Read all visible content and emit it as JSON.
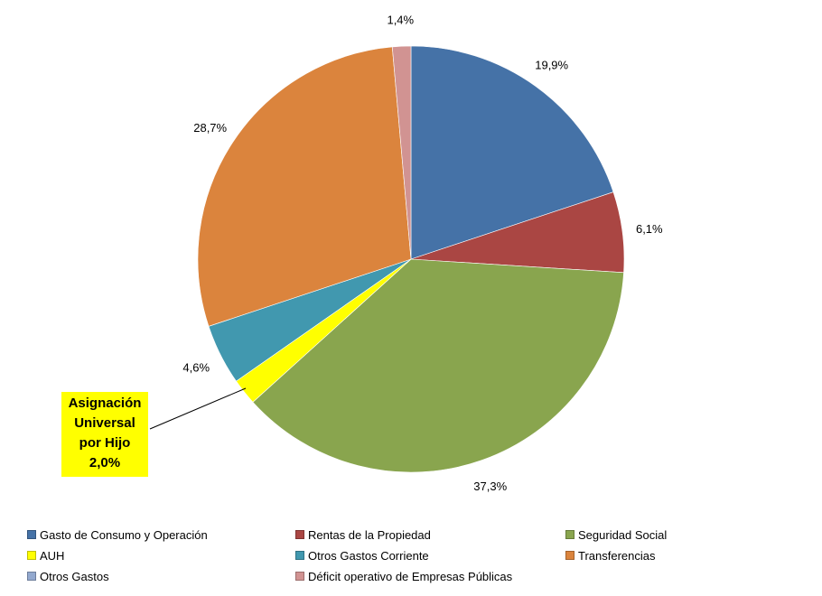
{
  "chart_data": {
    "type": "pie",
    "title": "",
    "start_angle": "12 o'clock",
    "direction": "clockwise",
    "slices": [
      {
        "name": "Gasto de Consumo y Operación",
        "value": 19.9,
        "label": "19,9%",
        "color": "#4572a7"
      },
      {
        "name": "Rentas de la Propiedad",
        "value": 6.1,
        "label": "6,1%",
        "color": "#aa4643"
      },
      {
        "name": "Seguridad Social",
        "value": 37.3,
        "label": "37,3%",
        "color": "#89a54e"
      },
      {
        "name": "AUH",
        "value": 2.0,
        "label": "",
        "color": "#ffff00"
      },
      {
        "name": "Otros Gastos Corriente",
        "value": 4.6,
        "label": "4,6%",
        "color": "#4198af"
      },
      {
        "name": "Transferencias",
        "value": 28.7,
        "label": "28,7%",
        "color": "#db843d"
      },
      {
        "name": "Otros Gastos",
        "value": 0.0,
        "label": "",
        "color": "#93a9cf"
      },
      {
        "name": "Déficit operativo de Empresas Públicas",
        "value": 1.4,
        "label": "1,4%",
        "color": "#d19392"
      }
    ],
    "callout": {
      "lines": [
        "Asignación",
        "Universal",
        "por Hijo",
        "2,0%"
      ],
      "color": "#ffff00"
    },
    "legend_position": "bottom"
  }
}
